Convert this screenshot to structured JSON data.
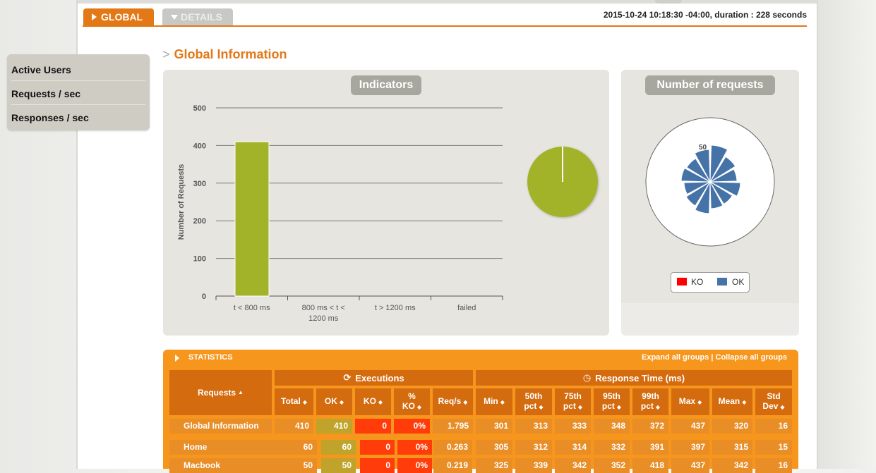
{
  "tabs": [
    {
      "label": "GLOBAL",
      "active": true
    },
    {
      "label": "DETAILS",
      "active": false
    }
  ],
  "run_info": "2015-10-24 10:18:30 -04:00, duration : 228 seconds",
  "menu": {
    "items": [
      "Active Users",
      "Requests / sec",
      "Responses / sec"
    ]
  },
  "section_title": "Global Information",
  "indicators": {
    "title": "Indicators",
    "pie_color": "#a2b32a"
  },
  "requests_panel": {
    "title": "Number of requests",
    "radial_label": "50",
    "legend": [
      {
        "label": "KO",
        "color": "#ff0000"
      },
      {
        "label": "OK",
        "color": "#4572a7"
      }
    ]
  },
  "chart_data": {
    "type": "bar",
    "title": "",
    "ylabel": "Number of Requests",
    "xlabel": "",
    "categories": [
      "t < 800 ms",
      "800 ms < t < 1200 ms",
      "t > 1200 ms",
      "failed"
    ],
    "values": [
      410,
      0,
      0,
      0
    ],
    "ylim": [
      0,
      500
    ],
    "yticks": [
      0,
      100,
      200,
      300,
      400,
      500
    ],
    "bar_color": "#a2b32a",
    "grid": true
  },
  "statistics": {
    "title": "STATISTICS",
    "links": "Expand all groups | Collapse all groups",
    "group_executions": "Executions",
    "group_response_time": "Response Time (ms)",
    "requests_header": "Requests",
    "columns": [
      "Total",
      "OK",
      "KO",
      "% KO",
      "Req/s",
      "Min",
      "50th pct",
      "75th pct",
      "95th pct",
      "99th pct",
      "Max",
      "Mean",
      "Std Dev"
    ],
    "rows": [
      {
        "name": "Global Information",
        "values": [
          "410",
          "410",
          "0",
          "0%",
          "1.795",
          "301",
          "313",
          "333",
          "348",
          "372",
          "437",
          "320",
          "16"
        ]
      },
      {
        "name": "Home",
        "values": [
          "60",
          "60",
          "0",
          "0%",
          "0.263",
          "305",
          "312",
          "314",
          "332",
          "391",
          "397",
          "315",
          "15"
        ]
      },
      {
        "name": "Macbook",
        "values": [
          "50",
          "50",
          "0",
          "0%",
          "0.219",
          "325",
          "339",
          "342",
          "352",
          "418",
          "437",
          "342",
          "16"
        ]
      }
    ]
  }
}
